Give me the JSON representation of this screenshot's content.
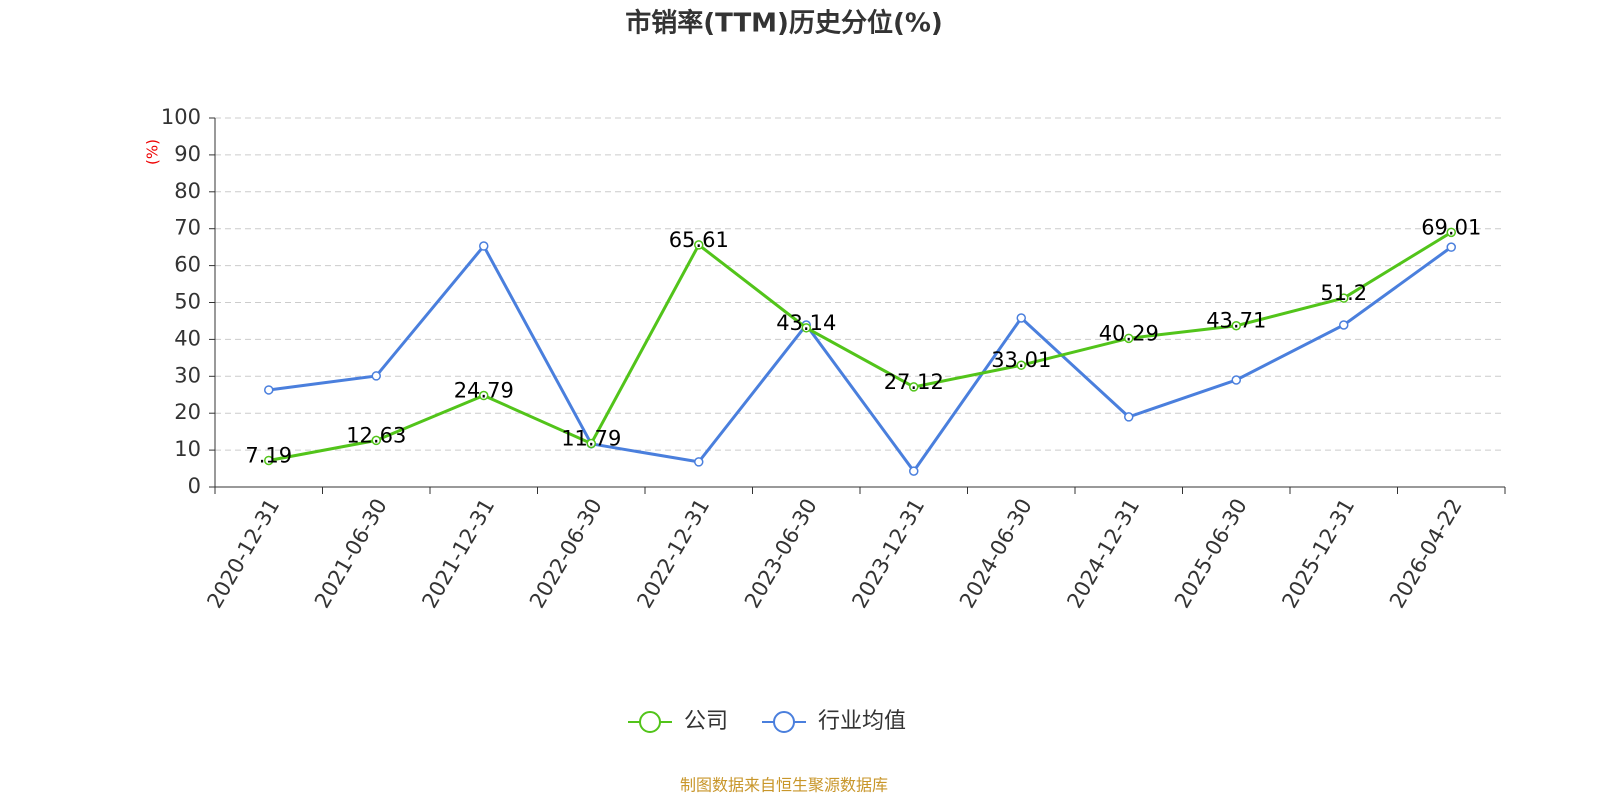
{
  "chart_data": {
    "type": "line",
    "title": "市销率(TTM)历史分位(%)",
    "y_label": "(%)",
    "categories": [
      "2020-12-31",
      "2021-06-30",
      "2021-12-31",
      "2022-06-30",
      "2022-12-31",
      "2023-06-30",
      "2023-12-31",
      "2024-06-30",
      "2024-12-31",
      "2025-06-30",
      "2025-12-31",
      "2026-04-22"
    ],
    "series": [
      {
        "name": "公司",
        "color": "#52c41a",
        "values": [
          7.19,
          12.63,
          24.79,
          11.79,
          65.61,
          43.14,
          27.12,
          33.01,
          40.29,
          43.71,
          51.2,
          69.01
        ],
        "show_labels": true
      },
      {
        "name": "行业均值",
        "color": "#4a7fdd",
        "values": [
          26.3,
          30.1,
          65.3,
          11.7,
          6.8,
          43.9,
          4.3,
          45.8,
          19.0,
          29.0,
          43.9,
          65.0
        ],
        "show_labels": false
      }
    ],
    "ylim": [
      0,
      100
    ],
    "yticks": [
      0,
      10,
      20,
      30,
      40,
      50,
      60,
      70,
      80,
      90,
      100
    ],
    "grid": true,
    "legend": "bottom",
    "source": "制图数据来自恒生聚源数据库"
  }
}
